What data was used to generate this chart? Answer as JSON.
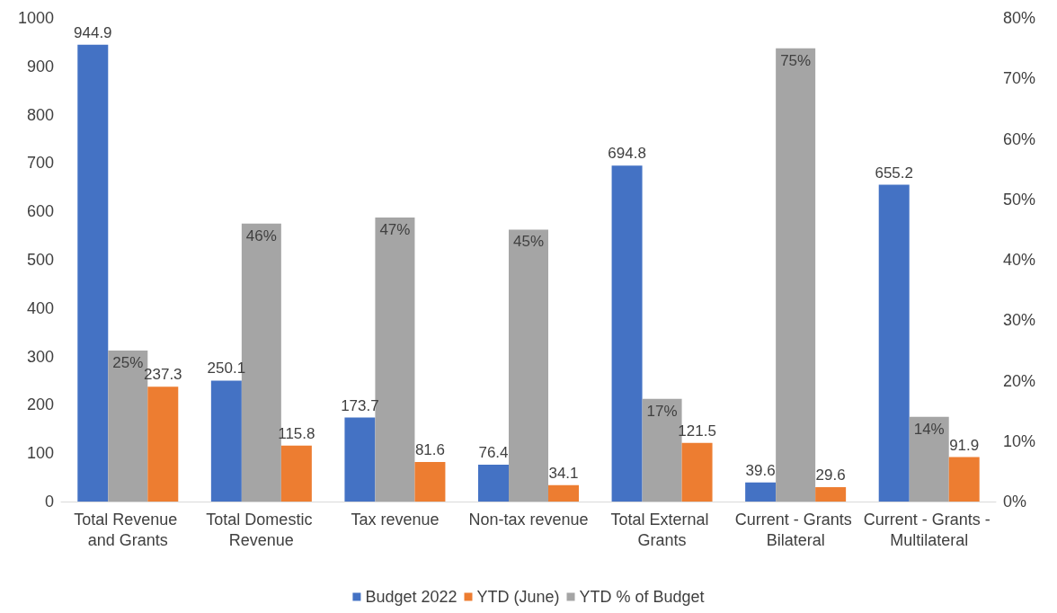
{
  "chart_data": {
    "type": "bar",
    "categories": [
      "Total Revenue and Grants",
      "Total Domestic Revenue",
      "Tax revenue",
      "Non-tax revenue",
      "Total External Grants",
      "Current - Grants Bilateral",
      "Current - Grants - Multilateral"
    ],
    "series": [
      {
        "name": "Budget 2022",
        "color": "#4472c4",
        "values": [
          944.9,
          250.1,
          173.7,
          76.4,
          694.8,
          39.6,
          655.2
        ]
      },
      {
        "name": "YTD % of Budget",
        "color": "#a5a5a5",
        "axis": "y2",
        "values": [
          25,
          46,
          47,
          45,
          17,
          75,
          14
        ],
        "value_labels": [
          "25%",
          "46%",
          "47%",
          "45%",
          "17%",
          "75%",
          "14%"
        ]
      },
      {
        "name": "YTD (June)",
        "color": "#ed7d31",
        "values": [
          237.3,
          115.8,
          81.6,
          34.1,
          121.5,
          29.6,
          91.9
        ]
      }
    ],
    "ylim": [
      0,
      1000
    ],
    "yticks": [
      0,
      100,
      200,
      300,
      400,
      500,
      600,
      700,
      800,
      900,
      1000
    ],
    "y2lim": [
      0,
      80
    ],
    "y2ticks": [
      {
        "value": 0,
        "label": "0%"
      },
      {
        "value": 10,
        "label": "10%"
      },
      {
        "value": 20,
        "label": "20%"
      },
      {
        "value": 30,
        "label": "30%"
      },
      {
        "value": 40,
        "label": "40%"
      },
      {
        "value": 50,
        "label": "50%"
      },
      {
        "value": 60,
        "label": "60%"
      },
      {
        "value": 70,
        "label": "70%"
      },
      {
        "value": 80,
        "label": "80%"
      }
    ],
    "data_labels": true,
    "grid": false,
    "legend": "bottom"
  }
}
